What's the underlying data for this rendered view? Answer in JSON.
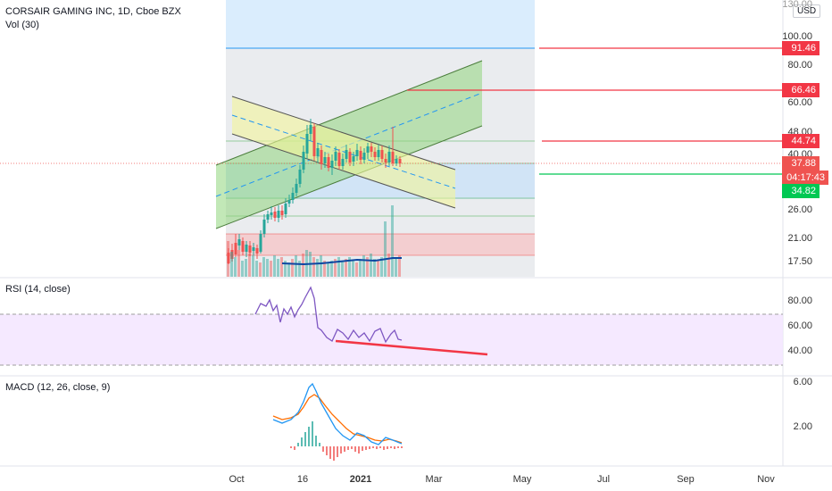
{
  "header": {
    "title": "CORSAIR GAMING INC, 1D, Cboe BZX",
    "volume_label": "Vol (30)",
    "currency": "USD"
  },
  "price_axis": {
    "ticks": [
      "130.00",
      "100.00",
      "80.00",
      "60.00",
      "48.00",
      "40.00",
      "26.00",
      "21.00",
      "17.50"
    ]
  },
  "rsi_axis": {
    "ticks": [
      "80.00",
      "60.00",
      "40.00"
    ]
  },
  "macd_axis": {
    "ticks": [
      "6.00",
      "2.00"
    ]
  },
  "time_axis": {
    "ticks": [
      "Oct",
      "16",
      "2021",
      "Mar",
      "May",
      "Jul",
      "Sep",
      "Nov"
    ]
  },
  "rsi": {
    "label": "RSI (14, close)"
  },
  "macd": {
    "label": "MACD (12, 26, close, 9)"
  },
  "price_labels": {
    "l1": "91.46",
    "l2": "66.46",
    "l3": "44.74",
    "last": "37.88",
    "countdown": "04:17:43",
    "support": "34.82"
  },
  "colors": {
    "up": "#26a69a",
    "down": "#ef5350",
    "target": "#f23645",
    "support": "#00c853",
    "rsi_line": "#7e57c2",
    "macd_line": "#2196f3",
    "signal_line": "#ff6d00",
    "volume_ma": "#0d47a1",
    "box_blue": "#bbdefb",
    "box_gray": "#d1d4dc",
    "channel_green": "#8fd67c",
    "channel_yellow": "#f2f59a"
  },
  "chart_data": {
    "type": "candlestick",
    "panes": [
      "price + volume",
      "RSI (14, close)",
      "MACD (12, 26, close, 9)"
    ],
    "price_scale": "log",
    "ylim": [
      16,
      130
    ],
    "price_axis_ticks": [
      130,
      100,
      80,
      60,
      48,
      40,
      26,
      21,
      17.5
    ],
    "price_levels": [
      91.46,
      66.46,
      44.74,
      37.88,
      34.82
    ],
    "trend_line_levels": {
      "top_fib": [
        91.46
      ],
      "price_targets": [
        91.46,
        66.46,
        44.74
      ],
      "support": 34.82,
      "last_price": 37.88
    },
    "price_series": [
      {
        "date": "2020-09-23",
        "close": 19.5
      },
      {
        "date": "2020-09-30",
        "close": 19.0
      },
      {
        "date": "2020-10-07",
        "close": 21.0
      },
      {
        "date": "2020-10-14",
        "close": 23.5
      },
      {
        "date": "2020-10-21",
        "close": 25.5
      },
      {
        "date": "2020-10-28",
        "close": 27.5
      },
      {
        "date": "2020-11-04",
        "close": 31.0
      },
      {
        "date": "2020-11-11",
        "close": 35.0
      },
      {
        "date": "2020-11-18",
        "close": 48.0
      },
      {
        "date": "2020-11-25",
        "close": 40.0
      },
      {
        "date": "2020-12-02",
        "close": 36.0
      },
      {
        "date": "2020-12-09",
        "close": 38.0
      },
      {
        "date": "2020-12-16",
        "close": 39.5
      },
      {
        "date": "2020-12-23",
        "close": 37.0
      },
      {
        "date": "2020-12-30",
        "close": 38.5
      },
      {
        "date": "2021-01-06",
        "close": 40.0
      },
      {
        "date": "2021-01-13",
        "close": 37.5
      },
      {
        "date": "2021-01-20",
        "close": 40.5
      },
      {
        "date": "2021-01-27",
        "close": 37.88
      }
    ],
    "rsi_series": {
      "range": [
        30,
        85
      ],
      "bands": [
        70,
        30
      ],
      "values": [
        70,
        71,
        73,
        69,
        71,
        66,
        73,
        71,
        74,
        77,
        85,
        60,
        56,
        55,
        59,
        54,
        57,
        52,
        55,
        58,
        54,
        59,
        53,
        57,
        55
      ]
    },
    "macd_series": {
      "macd": [
        2.1,
        2.0,
        2.3,
        2.6,
        3.8,
        5.2,
        5.9,
        5.3,
        4.5,
        3.4,
        2.6,
        1.8,
        1.3,
        1.5,
        1.2,
        0.9,
        1.1,
        0.8
      ],
      "signal": [
        2.0,
        2.1,
        2.2,
        2.4,
        2.9,
        3.8,
        4.6,
        4.9,
        4.6,
        4.1,
        3.4,
        2.6,
        1.9,
        1.6,
        1.3,
        1.0,
        0.9,
        0.8
      ]
    }
  }
}
